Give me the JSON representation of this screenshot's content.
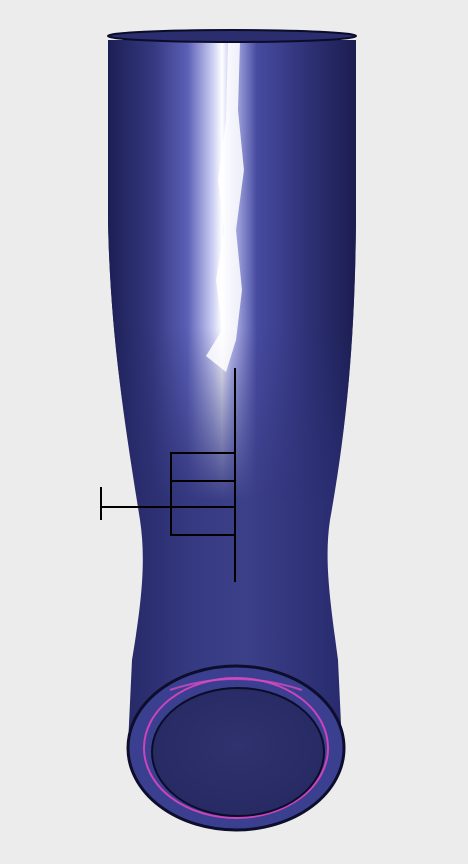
{
  "scene": {
    "object": "tube-3d-model",
    "colors": {
      "background": "#ececec",
      "tube_base": "#3a3e86",
      "tube_dark": "#1f2158",
      "tube_highlight": "#ffffff",
      "rim_outline": "#0a0a26",
      "inner_edge": "#cc44bb",
      "marker_line": "#000000"
    }
  }
}
